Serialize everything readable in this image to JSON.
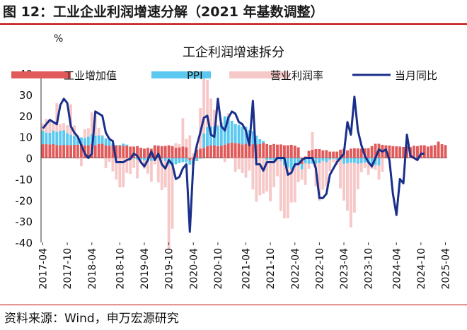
{
  "figure": {
    "title": "图 12：工业企业利润增速分解（2021 年基数调整）",
    "source": "资料来源：Wind，申万宏源研究"
  },
  "chart_data": {
    "type": "bar",
    "title": "工企利润增速拆分",
    "unit": "%",
    "ylim": [
      -40,
      40
    ],
    "yticks": [
      40,
      30,
      20,
      10,
      0,
      -10,
      -20,
      -30,
      -40
    ],
    "x_tick_labels": [
      "2017-04",
      "2017-10",
      "2018-04",
      "2018-10",
      "2019-04",
      "2019-10",
      "2020-04",
      "2020-10",
      "2021-04",
      "2021-10",
      "2022-04",
      "2022-10",
      "2023-04",
      "2023-10",
      "2024-04",
      "2024-10",
      "2025-04"
    ],
    "legend_position": "top",
    "colors": {
      "industrial_va": "#e05a5a",
      "ppi": "#5bc8f0",
      "margin": "#f6c8c8",
      "profit_yoy": "#1a2f8a"
    },
    "series": [
      {
        "name": "工业增加值",
        "kind": "bar",
        "values": [
          6.5,
          6.5,
          6.4,
          6.6,
          6.0,
          6.0,
          6.2,
          6.0,
          6.1,
          6.2,
          6.2,
          6.6,
          6.0,
          6.0,
          6.5,
          6.0,
          6.6,
          6.8,
          6.0,
          5.8,
          6.0,
          6.0,
          5.8,
          5.9,
          5.7,
          5.4,
          5.4,
          5.6,
          4.8,
          4.4,
          4.8,
          4.4,
          6.0,
          5.8,
          5.6,
          5.7,
          6.0,
          5.6,
          4.8,
          5.0,
          5.4,
          5.0,
          -1.1,
          -1.1,
          3.9,
          4.4,
          4.8,
          5.6,
          6.0,
          6.0,
          5.6,
          5.9,
          6.3,
          6.9,
          7.3,
          7.0,
          6.9,
          6.4,
          6.8,
          6.8,
          6.5,
          6.4,
          6.6,
          7.2,
          6.6,
          6.2,
          6.6,
          6.3,
          6.4,
          6.0,
          6.0,
          6.2,
          5.8,
          5.0,
          -2.9,
          0.7,
          3.4,
          3.9,
          4.2,
          4.2,
          3.6,
          3.7,
          3.0,
          3.0,
          3.0,
          3.9,
          4.4,
          3.6,
          4.4,
          4.6,
          4.5,
          4.4,
          4.5,
          4.6,
          5.6,
          6.7,
          6.7,
          6.2,
          6.0,
          5.9,
          5.6,
          5.5,
          5.4,
          5.2,
          5.6,
          5.1,
          5.8,
          5.6,
          6.0,
          6.0,
          5.4,
          5.8,
          6.1,
          7.7,
          6.5,
          6.1
        ]
      },
      {
        "name": "PPI",
        "kind": "bar",
        "values": [
          6.4,
          5.5,
          5.5,
          6.4,
          6.3,
          6.9,
          6.9,
          5.8,
          4.9,
          4.3,
          3.7,
          3.1,
          3.4,
          4.1,
          4.7,
          4.6,
          4.1,
          3.6,
          3.3,
          2.7,
          0.9,
          0.1,
          0.4,
          0.9,
          0.6,
          0.0,
          -0.3,
          -0.8,
          -0.8,
          -1.2,
          -1.6,
          -1.4,
          -0.5,
          0.1,
          -0.4,
          -1.5,
          -3.1,
          -3.7,
          -3.0,
          -2.4,
          -2.0,
          -2.1,
          -2.1,
          -2.1,
          -1.5,
          -0.4,
          6.8,
          9.0,
          9.0,
          9.0,
          9.5,
          10.7,
          13.5,
          12.9,
          10.3,
          9.1,
          8.8,
          8.3,
          8.0,
          6.4,
          6.1,
          4.2,
          2.3,
          0.9,
          -1.3,
          -0.8,
          -1.3,
          -0.7,
          -1.4,
          -3.6,
          -4.6,
          -5.4,
          -4.4,
          -3.0,
          -2.5,
          -2.6,
          -2.8,
          -2.7,
          -2.7,
          -2.5,
          -1.4,
          -2.0,
          -0.8,
          -0.4,
          -0.8,
          -0.8,
          -2.8,
          -2.5,
          -2.3,
          -2.3,
          -2.8,
          -2.5,
          -2.2,
          -2.3,
          -2.8,
          -3.3,
          -3.6
        ]
      },
      {
        "name": "营业利润率",
        "kind": "bar",
        "values": [
          3.4,
          6.5,
          5.8,
          3.5,
          13.6,
          3.1,
          3.4,
          3.7,
          14.4,
          4.9,
          -0.6,
          -3.9,
          4.2,
          4.0,
          10.4,
          9.5,
          3.6,
          0.5,
          -4.8,
          -1.9,
          -6.4,
          -10.3,
          -14.0,
          -13.9,
          -7.1,
          -7.5,
          -4.4,
          -8.9,
          -1.1,
          -3.9,
          -5.8,
          -9.8,
          -2.5,
          -11.6,
          -14.8,
          -12.5,
          -40.6,
          -29.9,
          2.2,
          1.5,
          13.4,
          4.0,
          10.7,
          2.2,
          1.6,
          19.2,
          27.9,
          22.4,
          13.2,
          7.9,
          0.7,
          0.4,
          -1.9,
          1.3,
          -0.3,
          -6.6,
          -5.3,
          -7.2,
          -9.4,
          -6.0,
          -14.9,
          -20.7,
          -17.7,
          -16.9,
          -14.6,
          -19.7,
          -12.6,
          -8.0,
          -23.8,
          -25.0,
          -23.9,
          -15.7,
          -16.6,
          -8.4,
          -4.9,
          -10.2,
          -2.3,
          8.3,
          -10.8,
          -17.8,
          -13.7,
          -11.6,
          -5.4,
          -1.6,
          -2.7,
          -13.6,
          -17.4,
          -22.5,
          -30.6,
          -23.6,
          -12.1,
          -4.2,
          -2.6,
          -5.7,
          -2.3,
          -2.3,
          -6.7,
          -6.5
        ]
      },
      {
        "name": "当月同比",
        "kind": "line",
        "values": [
          14,
          16,
          18,
          17,
          16,
          25,
          28,
          26,
          15,
          12,
          10,
          6,
          2,
          0,
          2,
          22,
          21,
          20,
          12,
          9,
          8,
          -2,
          -2,
          -2,
          -1,
          -0.5,
          2,
          1,
          -2,
          -4,
          -1,
          3,
          -1,
          2,
          -3,
          -5,
          -1,
          -3,
          -10,
          -9,
          -5,
          -3,
          -35,
          -2,
          6,
          12,
          19,
          20,
          11,
          10,
          28,
          15,
          13,
          19,
          22,
          21,
          17,
          16,
          13,
          6,
          27,
          -3,
          -3,
          -6,
          -2,
          -2,
          -2,
          0,
          0,
          0,
          -8,
          -7,
          -3,
          -3,
          -1,
          0,
          0,
          0,
          -5,
          -19,
          -19,
          -17,
          -8,
          -5,
          -2,
          0,
          2,
          17,
          11,
          29,
          13,
          6,
          1,
          -2,
          -4,
          0,
          4,
          3,
          4,
          -1,
          -17,
          -27,
          -10,
          -12,
          11,
          1,
          0,
          -1,
          2,
          2
        ]
      }
    ]
  }
}
